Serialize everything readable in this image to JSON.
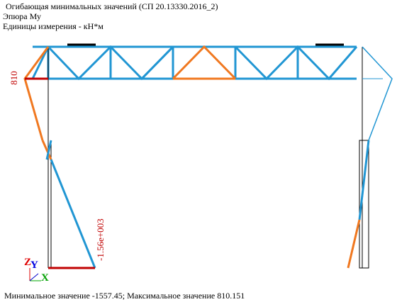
{
  "header": {
    "title": "Огибающая минимальных значений (СП 20.13330.2016_2)",
    "diagram": "Эпюра Му",
    "units": "Единицы измерения - кН*м"
  },
  "labels": {
    "left_top": "810",
    "left_bottom": "-1.56e+003"
  },
  "axes": {
    "z": "Z",
    "y": "Y",
    "x": "X"
  },
  "footer": "Минимальное значение  -1557.45; Максимальное значение  810.151"
}
